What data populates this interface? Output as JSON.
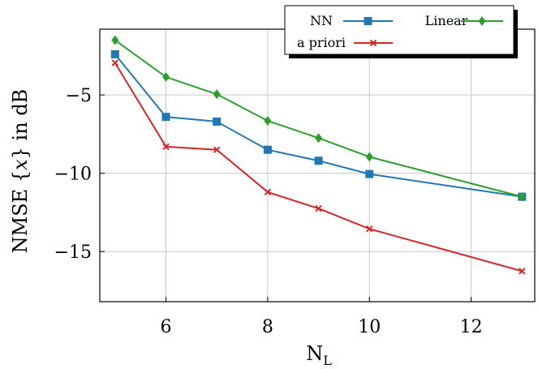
{
  "chart_data": {
    "type": "line",
    "xlabel": "N_L",
    "ylabel": "NMSE {x} in dB",
    "xlim": [
      4.7,
      13.25
    ],
    "ylim": [
      -18.2,
      -0.8
    ],
    "xticks": [
      6,
      8,
      10,
      12
    ],
    "yticks": [
      -5,
      -10,
      -15
    ],
    "xtick_labels": [
      "6",
      "8",
      "10",
      "12"
    ],
    "ytick_labels": [
      "−5",
      "−10",
      "−15"
    ],
    "grid": true,
    "legend_position": "top-right",
    "series": [
      {
        "name": "NN",
        "color": "#1f77b4",
        "marker": "square",
        "x": [
          5,
          6,
          7,
          8,
          9,
          10,
          13
        ],
        "y": [
          -2.4,
          -6.4,
          -6.7,
          -8.5,
          -9.2,
          -10.05,
          -11.5
        ]
      },
      {
        "name": "Linear",
        "color": "#2ca02c",
        "marker": "diamond",
        "x": [
          5,
          6,
          7,
          8,
          9,
          10,
          13
        ],
        "y": [
          -1.5,
          -3.85,
          -4.95,
          -6.65,
          -7.75,
          -8.95,
          -11.5
        ]
      },
      {
        "name": "a priori",
        "color": "#d62728",
        "marker": "x",
        "x": [
          5,
          6,
          7,
          8,
          9,
          10,
          13
        ],
        "y": [
          -2.95,
          -8.3,
          -8.5,
          -11.2,
          -12.25,
          -13.55,
          -16.25
        ]
      }
    ]
  }
}
